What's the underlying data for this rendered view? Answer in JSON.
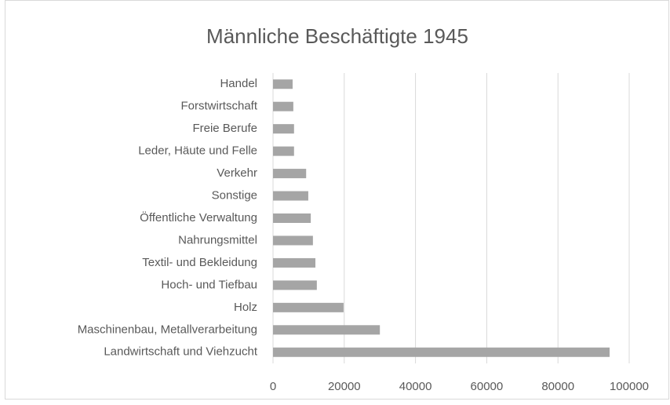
{
  "chart_data": {
    "type": "hbar",
    "title": "Männliche Beschäftigte 1945",
    "categories": [
      "Handel",
      "Forstwirtschaft",
      "Freie Berufe",
      "Leder, Häute und Felle",
      "Verkehr",
      "Sonstige",
      "Öffentliche Verwaltung",
      "Nahrungsmittel",
      "Textil- und Bekleidung",
      "Hoch- und Tiefbau",
      "Holz",
      "Maschinenbau, Metallverarbeitung",
      "Landwirtschaft und Viehzucht"
    ],
    "values": [
      5500,
      5700,
      5900,
      5900,
      9300,
      9900,
      10600,
      11200,
      11900,
      12300,
      19800,
      30000,
      94500
    ],
    "color": "#a5a5a5",
    "xlim": [
      0,
      100000
    ],
    "xticks": [
      0,
      20000,
      40000,
      60000,
      80000,
      100000
    ],
    "grid": true
  }
}
